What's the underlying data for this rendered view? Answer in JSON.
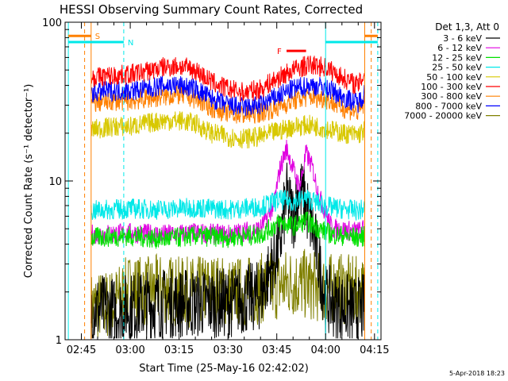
{
  "chart_data": {
    "type": "line",
    "title": "HESSI Observing Summary Count Rates, Corrected",
    "xlabel": "Start Time (25-May-16 02:42:02)",
    "ylabel": "Corrected Count Rate (s⁻¹ detector⁻¹)",
    "yscale": "log",
    "ylim": [
      1,
      100
    ],
    "xlim_minutes": [
      160,
      257
    ],
    "x_tick_labels": [
      "02:45",
      "03:00",
      "03:15",
      "03:30",
      "03:45",
      "04:00",
      "04:15"
    ],
    "x_tick_minutes": [
      165,
      180,
      195,
      210,
      225,
      240,
      255
    ],
    "y_tick_labels": [
      "1",
      "10",
      "100"
    ],
    "y_tick_values": [
      1,
      10,
      100
    ],
    "legend_title": "Det 1,3, Att 0",
    "legend_placement": "right",
    "series": [
      {
        "name": "3 - 6 keV",
        "color": "#000000",
        "values": [
          [
            168,
            1.6
          ],
          [
            175,
            1.5
          ],
          [
            180,
            1.6
          ],
          [
            190,
            1.7
          ],
          [
            200,
            1.7
          ],
          [
            210,
            1.7
          ],
          [
            220,
            1.9
          ],
          [
            226,
            4
          ],
          [
            228,
            8
          ],
          [
            230,
            6
          ],
          [
            232,
            9
          ],
          [
            234,
            7
          ],
          [
            236,
            5
          ],
          [
            238,
            3
          ],
          [
            240,
            1.8
          ],
          [
            245,
            1.6
          ],
          [
            250,
            1.5
          ],
          [
            252,
            1.6
          ]
        ]
      },
      {
        "name": "6 - 12 keV",
        "color": "#e000e0",
        "values": [
          [
            168,
            4.6
          ],
          [
            180,
            4.7
          ],
          [
            190,
            4.6
          ],
          [
            200,
            4.7
          ],
          [
            210,
            4.6
          ],
          [
            220,
            5
          ],
          [
            224,
            7
          ],
          [
            226,
            12
          ],
          [
            228,
            16
          ],
          [
            230,
            12
          ],
          [
            232,
            9
          ],
          [
            234,
            15
          ],
          [
            236,
            12
          ],
          [
            238,
            8
          ],
          [
            242,
            5
          ],
          [
            250,
            4.8
          ],
          [
            252,
            5
          ]
        ]
      },
      {
        "name": "12 - 25 keV",
        "color": "#00e000",
        "values": [
          [
            168,
            4.4
          ],
          [
            180,
            4.5
          ],
          [
            190,
            4.3
          ],
          [
            200,
            4.5
          ],
          [
            210,
            4.4
          ],
          [
            220,
            4.6
          ],
          [
            226,
            5.5
          ],
          [
            230,
            5.2
          ],
          [
            234,
            5.6
          ],
          [
            238,
            5
          ],
          [
            242,
            4.6
          ],
          [
            250,
            4.4
          ],
          [
            252,
            4.5
          ]
        ]
      },
      {
        "name": "25 - 50 keV",
        "color": "#00e8e8",
        "values": [
          [
            168,
            6.5
          ],
          [
            180,
            6.7
          ],
          [
            190,
            6.6
          ],
          [
            200,
            6.8
          ],
          [
            210,
            6.6
          ],
          [
            220,
            6.9
          ],
          [
            226,
            7.6
          ],
          [
            230,
            7.4
          ],
          [
            234,
            7.8
          ],
          [
            238,
            7.2
          ],
          [
            242,
            6.8
          ],
          [
            250,
            6.5
          ],
          [
            252,
            6.7
          ]
        ]
      },
      {
        "name": "50 - 100 keV",
        "color": "#d8c800",
        "values": [
          [
            168,
            21
          ],
          [
            175,
            22
          ],
          [
            180,
            22
          ],
          [
            185,
            23
          ],
          [
            190,
            24
          ],
          [
            195,
            24
          ],
          [
            200,
            23
          ],
          [
            205,
            20
          ],
          [
            210,
            19
          ],
          [
            215,
            18.5
          ],
          [
            220,
            19
          ],
          [
            225,
            20.5
          ],
          [
            230,
            22
          ],
          [
            235,
            22.5
          ],
          [
            240,
            21.5
          ],
          [
            245,
            20
          ],
          [
            250,
            19.5
          ],
          [
            252,
            21
          ]
        ]
      },
      {
        "name": "100 - 300 keV",
        "color": "#ff0000",
        "values": [
          [
            168,
            45
          ],
          [
            175,
            46
          ],
          [
            180,
            47
          ],
          [
            185,
            49
          ],
          [
            190,
            52
          ],
          [
            195,
            53
          ],
          [
            200,
            50
          ],
          [
            205,
            42
          ],
          [
            210,
            38
          ],
          [
            215,
            36
          ],
          [
            220,
            38
          ],
          [
            225,
            44
          ],
          [
            230,
            50
          ],
          [
            235,
            54
          ],
          [
            240,
            52
          ],
          [
            245,
            45
          ],
          [
            250,
            40
          ],
          [
            252,
            48
          ]
        ]
      },
      {
        "name": "300 - 800 keV",
        "color": "#ff8000",
        "values": [
          [
            168,
            31
          ],
          [
            175,
            32
          ],
          [
            180,
            32
          ],
          [
            185,
            33
          ],
          [
            190,
            34
          ],
          [
            195,
            35
          ],
          [
            200,
            33
          ],
          [
            205,
            29
          ],
          [
            210,
            27
          ],
          [
            215,
            26
          ],
          [
            220,
            27
          ],
          [
            225,
            29
          ],
          [
            230,
            32
          ],
          [
            235,
            34
          ],
          [
            240,
            33
          ],
          [
            245,
            29
          ],
          [
            250,
            27
          ],
          [
            252,
            31
          ]
        ]
      },
      {
        "name": "800 - 7000 keV",
        "color": "#0000ff",
        "values": [
          [
            168,
            36
          ],
          [
            175,
            37
          ],
          [
            180,
            37
          ],
          [
            185,
            38
          ],
          [
            190,
            40
          ],
          [
            195,
            40
          ],
          [
            200,
            38
          ],
          [
            205,
            33
          ],
          [
            210,
            30
          ],
          [
            215,
            29
          ],
          [
            220,
            30
          ],
          [
            225,
            34
          ],
          [
            230,
            38
          ],
          [
            235,
            40
          ],
          [
            240,
            39
          ],
          [
            245,
            34
          ],
          [
            250,
            31
          ],
          [
            252,
            36
          ]
        ]
      },
      {
        "name": "7000 - 20000 keV",
        "color": "#808000",
        "values": [
          [
            168,
            1.6
          ],
          [
            175,
            1.7
          ],
          [
            180,
            2.1
          ],
          [
            185,
            2
          ],
          [
            190,
            2.1
          ],
          [
            195,
            2
          ],
          [
            200,
            2
          ],
          [
            205,
            2.1
          ],
          [
            210,
            2
          ],
          [
            215,
            2
          ],
          [
            220,
            2.1
          ],
          [
            225,
            2.2
          ],
          [
            230,
            2.3
          ],
          [
            235,
            2.2
          ],
          [
            240,
            2.1
          ],
          [
            245,
            2.1
          ],
          [
            250,
            2
          ],
          [
            252,
            2
          ]
        ]
      }
    ],
    "markers": [
      {
        "label": "S",
        "color": "#ff8000",
        "segments": [
          [
            161,
            168
          ],
          [
            252,
            256
          ]
        ],
        "level": 82
      },
      {
        "label": "N",
        "color": "#00e8e8",
        "segments": [
          [
            161,
            178
          ],
          [
            240,
            256
          ]
        ],
        "level": 75
      },
      {
        "label": "F",
        "color": "#ff0000",
        "segments": [
          [
            228,
            234
          ]
        ],
        "level": 66
      }
    ],
    "vlines": [
      {
        "x": 161,
        "color": "#00e8e8",
        "style": "solid"
      },
      {
        "x": 166,
        "color": "#ff8000",
        "style": "dashed"
      },
      {
        "x": 168,
        "color": "#ff8000",
        "style": "solid"
      },
      {
        "x": 178,
        "color": "#00e8e8",
        "style": "dashed"
      },
      {
        "x": 240,
        "color": "#00e8e8",
        "style": "solid"
      },
      {
        "x": 252,
        "color": "#ff8000",
        "style": "solid"
      },
      {
        "x": 256,
        "color": "#00e8e8",
        "style": "dashed"
      },
      {
        "x": 254,
        "color": "#ff8000",
        "style": "dashed"
      }
    ]
  },
  "footer_date": "5-Apr-2018 18:23"
}
